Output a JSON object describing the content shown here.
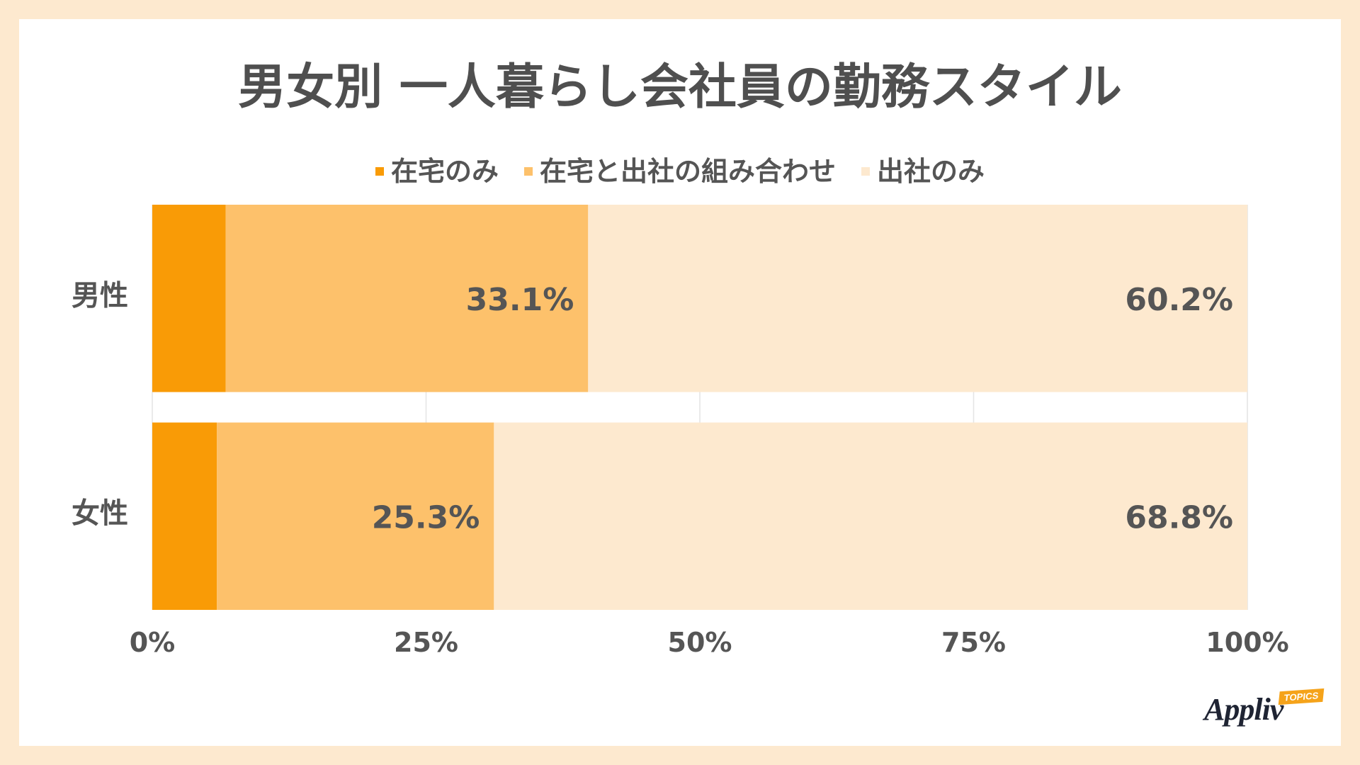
{
  "colors": {
    "background": "#fde9cf",
    "card": "#ffffff",
    "text": "#555555",
    "grid": "#e4e4e4"
  },
  "logo": {
    "name": "Appliv",
    "badge": "TOPICS"
  },
  "chart_data": {
    "type": "bar",
    "orientation": "horizontal",
    "stacked": "percent",
    "title": "男女別 一人暮らし会社員の勤務スタイル",
    "categories": [
      "男性",
      "女性"
    ],
    "series": [
      {
        "name": "在宅のみ",
        "color": "#f99b06",
        "values": [
          6.7,
          5.9
        ]
      },
      {
        "name": "在宅と出社の組み合わせ",
        "color": "#fdc16b",
        "values": [
          33.1,
          25.3
        ],
        "data_labels": [
          "33.1%",
          "25.3%"
        ]
      },
      {
        "name": "出社のみ",
        "color": "#fde9cf",
        "values": [
          60.2,
          68.8
        ],
        "data_labels": [
          "60.2%",
          "68.8%"
        ]
      }
    ],
    "xlim": [
      0,
      100
    ],
    "xticks": [
      0,
      25,
      50,
      75,
      100
    ],
    "xtick_labels": [
      "0%",
      "25%",
      "50%",
      "75%",
      "100%"
    ],
    "xlabel": "",
    "ylabel": "",
    "grid": true,
    "legend": "top-center"
  }
}
